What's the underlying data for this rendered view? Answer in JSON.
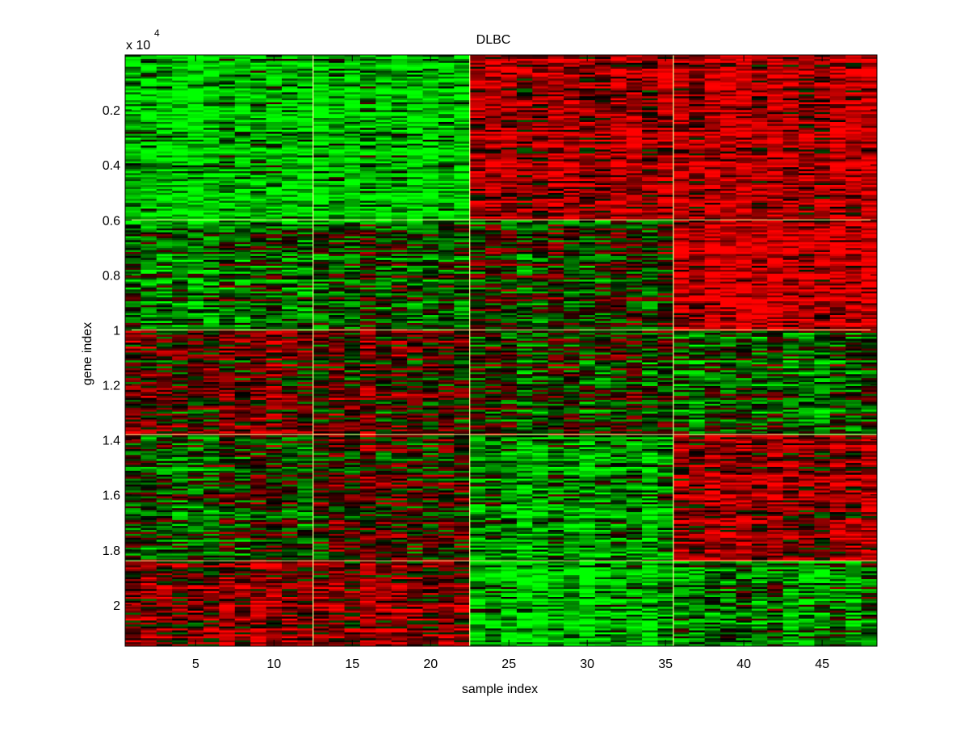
{
  "chart_data": {
    "type": "heatmap",
    "title": "DLBC",
    "xlabel": "sample index",
    "ylabel": "gene index",
    "y_exponent_base": "x 10",
    "y_exponent_power": "4",
    "xlim": [
      0.5,
      48.5
    ],
    "ylim": [
      0,
      21500
    ],
    "n_samples": 48,
    "x_ticks": [
      5,
      10,
      15,
      20,
      25,
      30,
      35,
      40,
      45
    ],
    "x_tick_labels": [
      "5",
      "10",
      "15",
      "20",
      "25",
      "30",
      "35",
      "40",
      "45"
    ],
    "y_ticks": [
      2000,
      4000,
      6000,
      8000,
      10000,
      12000,
      14000,
      16000,
      18000,
      20000
    ],
    "y_tick_labels": [
      "0.2",
      "0.4",
      "0.6",
      "0.8",
      "1",
      "1.2",
      "1.4",
      "1.6",
      "1.8",
      "2"
    ],
    "sample_cluster_boundaries": [
      12.5,
      22.5,
      35.5
    ],
    "gene_cluster_boundaries": [
      6000,
      10000,
      13800,
      18400
    ],
    "colormap": {
      "low": "#00ff00",
      "mid": "#000000",
      "high": "#ff0000",
      "separator": "#ffff99"
    },
    "block_tendency": {
      "description_levels": "-1 = green (low), 0 = mixed, 1 = red (high)",
      "rows": [
        [
          -0.75,
          -0.75,
          0.65,
          0.75
        ],
        [
          -0.35,
          -0.15,
          -0.05,
          0.9
        ],
        [
          0.3,
          0.25,
          -0.1,
          -0.3
        ],
        [
          -0.1,
          0.2,
          -0.55,
          0.6
        ],
        [
          0.55,
          0.55,
          -0.75,
          -0.45
        ]
      ]
    }
  }
}
